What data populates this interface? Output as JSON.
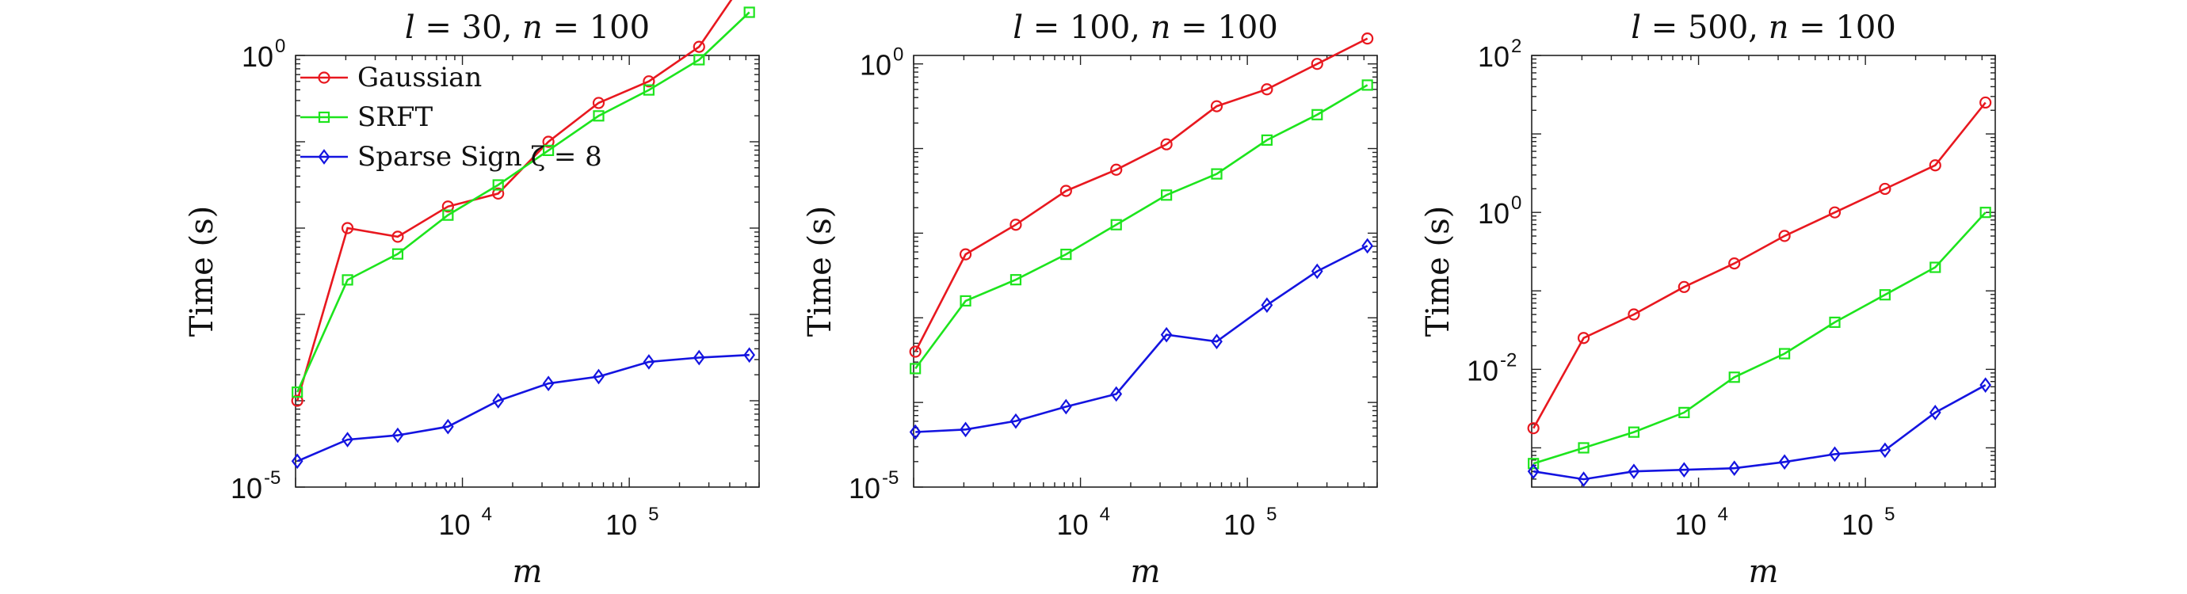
{
  "chart_data": [
    {
      "type": "line",
      "title_parts": [
        "l",
        " = 30, ",
        "n",
        " = 100"
      ],
      "xlabel": "m",
      "ylabel": "Time (s)",
      "xscale": "log",
      "yscale": "log",
      "xlim": [
        1000,
        600000
      ],
      "ylim_exp": [
        -5,
        0
      ],
      "x_tick_labels": [
        {
          "base": "10",
          "exp": "4",
          "value": 10000
        },
        {
          "base": "10",
          "exp": "5",
          "value": 100000
        }
      ],
      "y_tick_labels": [
        {
          "base": "10",
          "exp": "-5",
          "value": -5
        },
        {
          "base": "10",
          "exp": "0",
          "value": 0
        }
      ],
      "legend": {
        "position": "top-left",
        "entries": [
          "Gaussian",
          "SRFT",
          "Sparse Sign ζ = 8"
        ]
      },
      "x": [
        1024,
        2048,
        4096,
        8192,
        16384,
        32768,
        65536,
        131072,
        262144,
        524288
      ],
      "series": [
        {
          "name": "Gaussian",
          "color": "#e8181f",
          "marker": "circle",
          "log10_values": [
            -4.0,
            -2.0,
            -2.1,
            -1.75,
            -1.6,
            -1.0,
            -0.55,
            -0.3,
            0.1,
            0.95
          ]
        },
        {
          "name": "SRFT",
          "color": "#1de41d",
          "marker": "square",
          "log10_values": [
            -3.9,
            -2.6,
            -2.3,
            -1.85,
            -1.5,
            -1.1,
            -0.7,
            -0.4,
            -0.05,
            0.5
          ]
        },
        {
          "name": "Sparse Sign ζ = 8",
          "color": "#1414e0",
          "marker": "diamond",
          "log10_values": [
            -4.7,
            -4.45,
            -4.4,
            -4.3,
            -4.0,
            -3.8,
            -3.72,
            -3.55,
            -3.5,
            -3.47
          ]
        }
      ]
    },
    {
      "type": "line",
      "title_parts": [
        "l",
        " = 100, ",
        "n",
        " = 100"
      ],
      "xlabel": "m",
      "ylabel": "Time (s)",
      "xscale": "log",
      "yscale": "log",
      "xlim": [
        1000,
        600000
      ],
      "ylim_exp": [
        -5,
        0.1
      ],
      "x_tick_labels": [
        {
          "base": "10",
          "exp": "4",
          "value": 10000
        },
        {
          "base": "10",
          "exp": "5",
          "value": 100000
        }
      ],
      "y_tick_labels": [
        {
          "base": "10",
          "exp": "-5",
          "value": -5
        },
        {
          "base": "10",
          "exp": "0",
          "value": 0
        }
      ],
      "x": [
        1024,
        2048,
        4096,
        8192,
        16384,
        32768,
        65536,
        131072,
        262144,
        524288
      ],
      "series": [
        {
          "name": "Gaussian",
          "color": "#e8181f",
          "marker": "circle",
          "log10_values": [
            -3.4,
            -2.25,
            -1.9,
            -1.5,
            -1.25,
            -0.95,
            -0.5,
            -0.3,
            0.0,
            0.3
          ]
        },
        {
          "name": "SRFT",
          "color": "#1de41d",
          "marker": "square",
          "log10_values": [
            -3.6,
            -2.8,
            -2.55,
            -2.25,
            -1.9,
            -1.55,
            -1.3,
            -0.9,
            -0.6,
            -0.25
          ]
        },
        {
          "name": "Sparse Sign ζ = 8",
          "color": "#1414e0",
          "marker": "diamond",
          "log10_values": [
            -4.35,
            -4.32,
            -4.22,
            -4.05,
            -3.9,
            -3.2,
            -3.28,
            -2.85,
            -2.45,
            -2.15
          ]
        }
      ]
    },
    {
      "type": "line",
      "title_parts": [
        "l",
        " = 500, ",
        "n",
        " = 100"
      ],
      "xlabel": "m",
      "ylabel": "Time (s)",
      "xscale": "log",
      "yscale": "log",
      "xlim": [
        1000,
        600000
      ],
      "ylim_exp": [
        -3.5,
        2
      ],
      "x_tick_labels": [
        {
          "base": "10",
          "exp": "4",
          "value": 10000
        },
        {
          "base": "10",
          "exp": "5",
          "value": 100000
        }
      ],
      "y_tick_labels": [
        {
          "base": "10",
          "exp": "-2",
          "value": -2
        },
        {
          "base": "10",
          "exp": "0",
          "value": 0
        },
        {
          "base": "10",
          "exp": "2",
          "value": 2
        }
      ],
      "x": [
        1024,
        2048,
        4096,
        8192,
        16384,
        32768,
        65536,
        131072,
        262144,
        524288
      ],
      "series": [
        {
          "name": "Gaussian",
          "color": "#e8181f",
          "marker": "circle",
          "log10_values": [
            -2.75,
            -1.6,
            -1.3,
            -0.95,
            -0.65,
            -0.3,
            0.0,
            0.3,
            0.6,
            1.4
          ]
        },
        {
          "name": "SRFT",
          "color": "#1de41d",
          "marker": "square",
          "log10_values": [
            -3.2,
            -3.0,
            -2.8,
            -2.55,
            -2.1,
            -1.8,
            -1.4,
            -1.05,
            -0.7,
            0.0
          ]
        },
        {
          "name": "Sparse Sign ζ = 8",
          "color": "#1414e0",
          "marker": "diamond",
          "log10_values": [
            -3.3,
            -3.4,
            -3.3,
            -3.28,
            -3.26,
            -3.18,
            -3.08,
            -3.03,
            -2.55,
            -2.2
          ]
        }
      ]
    }
  ]
}
